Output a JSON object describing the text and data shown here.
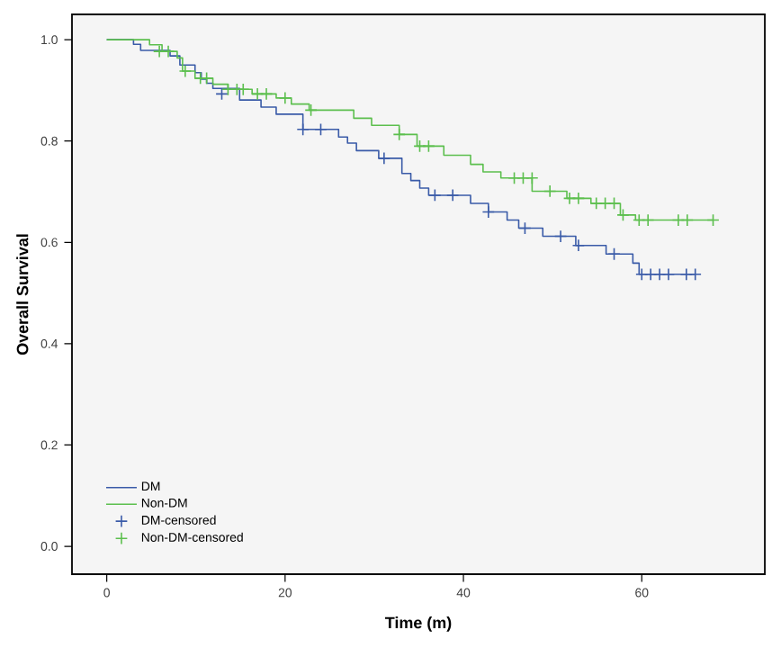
{
  "chart_data": {
    "type": "step",
    "xlabel": "Time (m)",
    "ylabel": "Overall Survival",
    "xlim": [
      -3.9,
      73.8
    ],
    "ylim": [
      -0.055,
      1.05
    ],
    "xticks": [
      0,
      20,
      40,
      60
    ],
    "yticks": [
      {
        "value": 0,
        "label": "0.0"
      },
      {
        "value": 0.2,
        "label": "0.2"
      },
      {
        "value": 0.4,
        "label": "0.4"
      },
      {
        "value": 0.6,
        "label": "0.6"
      },
      {
        "value": 0.8,
        "label": "0.8"
      },
      {
        "value": 1,
        "label": "1.0"
      }
    ],
    "legend": "bottom left",
    "grid": false,
    "series": [
      {
        "name": "DM",
        "color": "#3a5ba8",
        "marker": "none",
        "x": [
          0,
          3.0,
          3.8,
          7.1,
          8.2,
          9.9,
          10.6,
          11.2,
          11.9,
          14.9,
          17.3,
          19,
          22,
          26,
          27,
          28,
          30.5,
          33.1,
          34.1,
          35.1,
          36.1,
          40.8,
          42.8,
          44.9,
          46.2,
          48.9,
          52.6,
          56,
          59,
          59.7,
          66
        ],
        "values": [
          1,
          0.991,
          0.979,
          0.968,
          0.95,
          0.935,
          0.922,
          0.914,
          0.904,
          0.881,
          0.867,
          0.853,
          0.823,
          0.808,
          0.796,
          0.781,
          0.766,
          0.736,
          0.722,
          0.707,
          0.693,
          0.677,
          0.66,
          0.644,
          0.628,
          0.612,
          0.594,
          0.577,
          0.559,
          0.537,
          0.537
        ]
      },
      {
        "name": "Non-DM",
        "color": "#5cbf4e",
        "marker": "none",
        "x": [
          0,
          4.8,
          6.2,
          7.9,
          8.5,
          9.9,
          11.9,
          13.6,
          16.3,
          19,
          20.7,
          22.7,
          27.7,
          29.7,
          32.8,
          34.8,
          37.8,
          40.8,
          42.2,
          44.2,
          47.7,
          51.6,
          54.3,
          57.6,
          59.3,
          68
        ],
        "values": [
          1,
          0.99,
          0.977,
          0.964,
          0.938,
          0.924,
          0.912,
          0.902,
          0.893,
          0.885,
          0.873,
          0.861,
          0.845,
          0.831,
          0.813,
          0.79,
          0.772,
          0.754,
          0.739,
          0.727,
          0.701,
          0.687,
          0.677,
          0.654,
          0.644,
          0.644
        ]
      },
      {
        "name": "DM-censored",
        "type": "scatter",
        "color": "#3a5ba8",
        "marker": "cross",
        "x": [
          12.9,
          22,
          24,
          31.1,
          36.8,
          38.8,
          42.8,
          46.9,
          50.9,
          52.9,
          56.9,
          60,
          61,
          62,
          63,
          65,
          66
        ],
        "values": [
          0.893,
          0.823,
          0.823,
          0.766,
          0.693,
          0.693,
          0.66,
          0.628,
          0.612,
          0.594,
          0.577,
          0.537,
          0.537,
          0.537,
          0.537,
          0.537,
          0.537
        ]
      },
      {
        "name": "Non-DM-censored",
        "type": "scatter",
        "color": "#5cbf4e",
        "marker": "cross",
        "x": [
          5.9,
          6.9,
          8.8,
          10.5,
          11.2,
          13.6,
          14.6,
          15.3,
          16.9,
          17.9,
          20,
          22.9,
          32.8,
          35.1,
          36.1,
          45.7,
          46.7,
          47.7,
          49.7,
          51.9,
          52.9,
          54.9,
          55.9,
          56.9,
          57.9,
          59.7,
          60.7,
          64.1,
          65.1,
          68
        ],
        "values": [
          0.977,
          0.977,
          0.938,
          0.924,
          0.924,
          0.902,
          0.902,
          0.902,
          0.893,
          0.893,
          0.885,
          0.861,
          0.813,
          0.79,
          0.79,
          0.727,
          0.727,
          0.727,
          0.701,
          0.687,
          0.687,
          0.677,
          0.677,
          0.677,
          0.654,
          0.644,
          0.644,
          0.644,
          0.644,
          0.644
        ]
      }
    ]
  }
}
